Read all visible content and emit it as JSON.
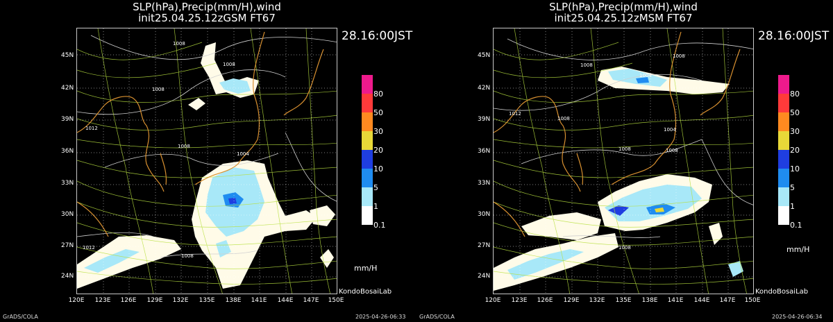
{
  "panels": [
    {
      "title_line1": "SLP(hPa),Precip(mm/H),wind",
      "title_line2": "init25.04.25.12zGSM FT67",
      "valid_time": "28.16:00JST",
      "lat_labels": [
        "45N",
        "42N",
        "39N",
        "36N",
        "33N",
        "30N",
        "27N",
        "24N"
      ],
      "lon_labels": [
        "120E",
        "123E",
        "126E",
        "129E",
        "132E",
        "135E",
        "138E",
        "141E",
        "144E",
        "147E",
        "150E"
      ],
      "colorbar_labels": [
        "80",
        "50",
        "30",
        "20",
        "10",
        "5",
        "1",
        "0.1"
      ],
      "colorbar_colors": [
        "#ee1a8c",
        "#ff3a3a",
        "#ff8a20",
        "#e8d838",
        "#1f3ee0",
        "#1f8cf0",
        "#a8e8f8",
        "#ffffff"
      ],
      "unit": "mm/H",
      "credit": "KondoBosaiLab",
      "footer_left": "GrADS/COLA",
      "footer_right": "2025-04-26-06:33",
      "isobar_labels": [
        "1008",
        "1008",
        "1008",
        "1008",
        "1004",
        "1012",
        "1008",
        "1012"
      ]
    },
    {
      "title_line1": "SLP(hPa),Precip(mm/H),wind",
      "title_line2": "init25.04.25.12zMSM FT67",
      "valid_time": "28.16:00JST",
      "lat_labels": [
        "45N",
        "42N",
        "39N",
        "36N",
        "33N",
        "30N",
        "27N",
        "24N"
      ],
      "lon_labels": [
        "120E",
        "123E",
        "126E",
        "129E",
        "132E",
        "135E",
        "138E",
        "141E",
        "144E",
        "147E",
        "150E"
      ],
      "colorbar_labels": [
        "80",
        "50",
        "30",
        "20",
        "10",
        "5",
        "1",
        "0.1"
      ],
      "colorbar_colors": [
        "#ee1a8c",
        "#ff3a3a",
        "#ff8a20",
        "#e8d838",
        "#1f3ee0",
        "#1f8cf0",
        "#a8e8f8",
        "#ffffff"
      ],
      "unit": "mm/H",
      "credit": "KondoBosaiLab",
      "footer_left": "GrADS/COLA",
      "footer_right": "2025-04-26-06:34",
      "isobar_labels": [
        "1008",
        "1008",
        "1004",
        "1012",
        "1008",
        "1004",
        "1008",
        "1008",
        "1008"
      ]
    }
  ],
  "colors": {
    "streamline": "#b8e040",
    "coast": "#d89030",
    "isobar": "#d0d0d0",
    "grid": "#ffffff"
  }
}
